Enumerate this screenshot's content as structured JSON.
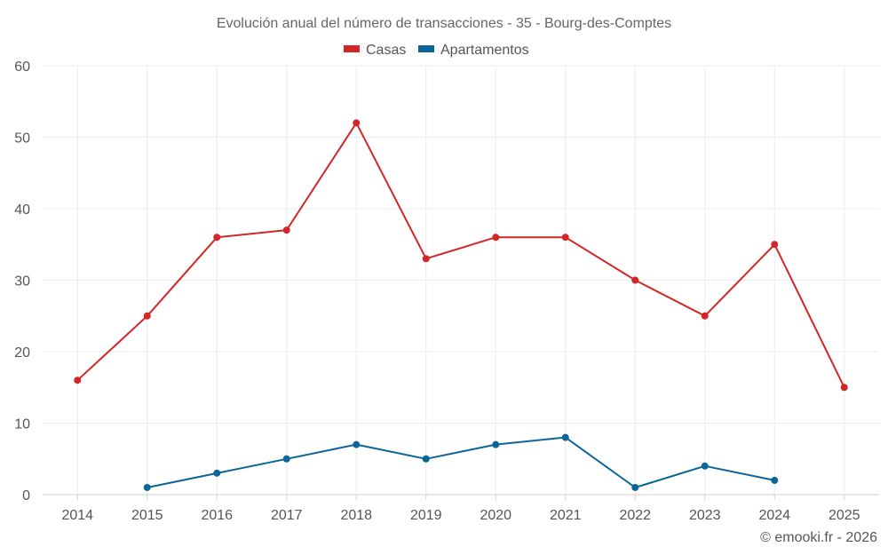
{
  "chart_data": {
    "type": "line",
    "title": "Evolución anual del número de transacciones - 35 - Bourg-des-Comptes",
    "categories": [
      "2014",
      "2015",
      "2016",
      "2017",
      "2018",
      "2019",
      "2020",
      "2021",
      "2022",
      "2023",
      "2024",
      "2025"
    ],
    "series": [
      {
        "name": "Casas",
        "color": "#d32626",
        "values": [
          16,
          25,
          36,
          37,
          52,
          33,
          36,
          36,
          30,
          25,
          35,
          15
        ]
      },
      {
        "name": "Apartamentos",
        "color": "#0a6599",
        "values": [
          null,
          1,
          3,
          5,
          7,
          5,
          7,
          8,
          1,
          4,
          2,
          null
        ]
      }
    ],
    "ylim": [
      0,
      60
    ],
    "yticks": [
      "0",
      "10",
      "20",
      "30",
      "40",
      "50",
      "60"
    ],
    "xlabel": "",
    "ylabel": "",
    "grid": true,
    "legend": "top-center"
  },
  "credit": "© emooki.fr - 2026"
}
